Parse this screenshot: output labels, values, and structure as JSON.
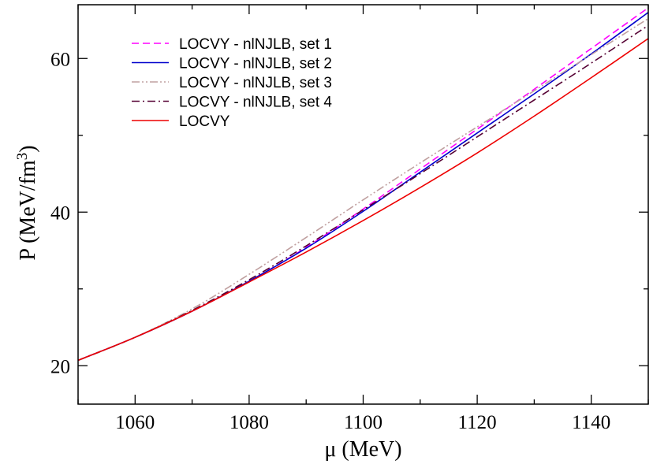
{
  "chart_data": {
    "type": "line",
    "xlabel": "μ (MeV)",
    "ylabel": "P (MeV/fm",
    "ylabel_sup": "3",
    "ylabel_close": ")",
    "xlim": [
      1050,
      1150
    ],
    "ylim": [
      15,
      67
    ],
    "xticks": [
      1060,
      1080,
      1100,
      1120,
      1140
    ],
    "yticks": [
      20,
      40,
      60
    ],
    "grid": false,
    "legend_position": "top-left",
    "series": [
      {
        "name": "LOCVY - nlNJLB, set 1",
        "color": "#ff00ff",
        "dash": "dashed",
        "x": [
          1050,
          1060,
          1070,
          1080,
          1090,
          1100,
          1110,
          1120,
          1130,
          1140,
          1150
        ],
        "y": [
          20.7,
          23.7,
          27.1,
          31.0,
          35.4,
          40.4,
          45.6,
          50.8,
          56.0,
          61.3,
          66.6
        ]
      },
      {
        "name": "LOCVY - nlNJLB, set 2",
        "color": "#0000cc",
        "dash": "solid",
        "x": [
          1050,
          1060,
          1070,
          1080,
          1090,
          1100,
          1110,
          1120,
          1130,
          1140,
          1150
        ],
        "y": [
          20.7,
          23.7,
          27.1,
          31.0,
          35.3,
          40.1,
          45.2,
          50.3,
          55.4,
          60.6,
          66.0
        ]
      },
      {
        "name": "LOCVY - nlNJLB, set 3",
        "color": "#c0a0a0",
        "dash": "dash-dot-dot",
        "x": [
          1050,
          1060,
          1070,
          1080,
          1090,
          1100,
          1110,
          1120,
          1130,
          1140,
          1150
        ],
        "y": [
          20.7,
          23.7,
          27.4,
          31.9,
          36.7,
          41.6,
          46.4,
          51.1,
          55.8,
          60.5,
          65.2
        ]
      },
      {
        "name": "LOCVY - nlNJLB, set 4",
        "color": "#550033",
        "dash": "dash-dot",
        "x": [
          1050,
          1060,
          1070,
          1080,
          1090,
          1100,
          1110,
          1120,
          1130,
          1140,
          1150
        ],
        "y": [
          20.7,
          23.7,
          27.2,
          31.2,
          35.6,
          40.3,
          45.0,
          49.8,
          54.6,
          59.4,
          64.3
        ]
      },
      {
        "name": "LOCVY",
        "color": "#ee0000",
        "dash": "solid",
        "x": [
          1050,
          1060,
          1070,
          1080,
          1090,
          1100,
          1110,
          1120,
          1130,
          1140,
          1150
        ],
        "y": [
          20.7,
          23.7,
          27.1,
          30.9,
          34.8,
          38.9,
          43.2,
          47.7,
          52.5,
          57.5,
          62.6
        ]
      }
    ]
  }
}
